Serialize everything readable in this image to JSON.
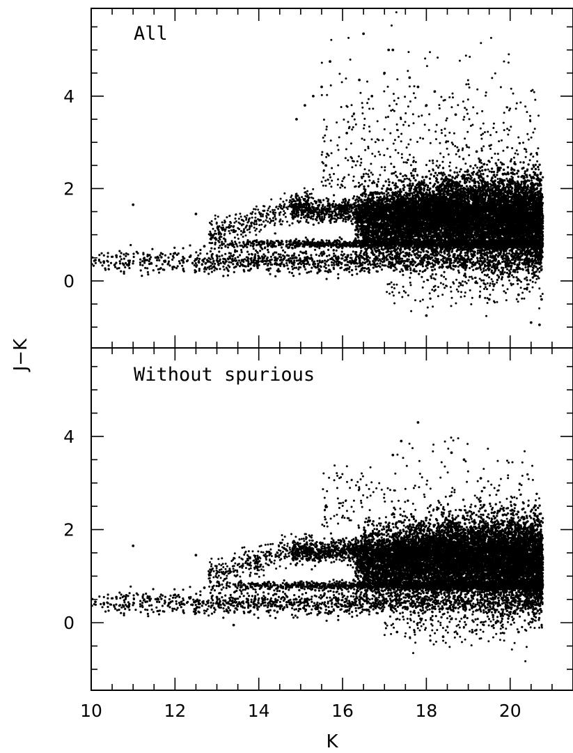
{
  "chart_data": [
    {
      "type": "scatter",
      "panel_label": "All",
      "xlabel": "K",
      "ylabel": "J−K",
      "xlim": [
        10,
        21.5
      ],
      "ylim": [
        -1.45,
        5.9
      ],
      "xticks": [
        10,
        12,
        14,
        16,
        18,
        20
      ],
      "yticks": [
        0,
        2,
        4
      ],
      "grid": false,
      "legend": "none",
      "color": "#000000",
      "points": [
        [
          10.1,
          0.45
        ],
        [
          10.3,
          0.42
        ],
        [
          10.6,
          0.55
        ],
        [
          10.9,
          0.35
        ],
        [
          11.0,
          1.65
        ],
        [
          11.3,
          0.45
        ],
        [
          11.6,
          0.5
        ],
        [
          12.0,
          0.6
        ],
        [
          12.2,
          0.4
        ],
        [
          12.5,
          1.45
        ],
        [
          12.7,
          0.75
        ],
        [
          13.0,
          0.55
        ],
        [
          13.4,
          1.1
        ],
        [
          13.6,
          0.45
        ],
        [
          14.0,
          0.8
        ],
        [
          14.3,
          1.3
        ],
        [
          14.6,
          1.6
        ],
        [
          14.9,
          3.5
        ],
        [
          15.1,
          3.8
        ],
        [
          15.3,
          4.0
        ],
        [
          15.5,
          4.2
        ],
        [
          15.6,
          2.5
        ],
        [
          15.7,
          4.75
        ],
        [
          16.1,
          3.2
        ],
        [
          16.4,
          4.35
        ],
        [
          16.5,
          5.35
        ],
        [
          16.7,
          4.0
        ],
        [
          17.0,
          4.5
        ],
        [
          17.1,
          5.0
        ],
        [
          17.2,
          5.0
        ],
        [
          17.6,
          4.4
        ],
        [
          17.8,
          4.2
        ],
        [
          18.0,
          3.8
        ],
        [
          18.2,
          4.1
        ],
        [
          18.3,
          1.3
        ],
        [
          18.7,
          3.6
        ],
        [
          19.2,
          2.8
        ],
        [
          19.6,
          0.5
        ],
        [
          20.2,
          -0.3
        ],
        [
          20.5,
          -0.9
        ],
        [
          20.7,
          -0.95
        ],
        [
          20.75,
          -0.4
        ],
        [
          17.5,
          0.3
        ],
        [
          18.0,
          -0.75
        ],
        [
          19.5,
          -0.4
        ],
        [
          16.0,
          1.55
        ],
        [
          17.0,
          1.6
        ],
        [
          19.0,
          1.4
        ]
      ]
    },
    {
      "type": "scatter",
      "panel_label": "Without spurious",
      "xlabel": "K",
      "ylabel": "J−K",
      "xlim": [
        10,
        21.5
      ],
      "ylim": [
        -1.45,
        5.9
      ],
      "xticks": [
        10,
        12,
        14,
        16,
        18,
        20
      ],
      "yticks": [
        0,
        2,
        4
      ],
      "grid": false,
      "legend": "none",
      "color": "#000000",
      "points": [
        [
          10.1,
          0.45
        ],
        [
          10.3,
          0.42
        ],
        [
          10.6,
          0.55
        ],
        [
          10.9,
          0.35
        ],
        [
          11.0,
          1.65
        ],
        [
          11.3,
          0.45
        ],
        [
          11.6,
          0.5
        ],
        [
          12.0,
          0.6
        ],
        [
          12.2,
          0.4
        ],
        [
          12.5,
          1.45
        ],
        [
          12.7,
          0.75
        ],
        [
          13.0,
          0.55
        ],
        [
          13.4,
          1.1
        ],
        [
          13.4,
          -0.05
        ],
        [
          14.0,
          0.8
        ],
        [
          14.3,
          1.3
        ],
        [
          14.6,
          1.6
        ],
        [
          15.6,
          2.5
        ],
        [
          17.2,
          3.6
        ],
        [
          17.4,
          3.9
        ],
        [
          17.8,
          4.3
        ],
        [
          18.6,
          3.65
        ],
        [
          18.9,
          3.5
        ],
        [
          19.3,
          3.1
        ],
        [
          19.6,
          0.5
        ],
        [
          20.2,
          -0.2
        ],
        [
          20.6,
          0.3
        ],
        [
          17.3,
          -0.2
        ],
        [
          18.4,
          -0.3
        ],
        [
          19.1,
          -0.2
        ],
        [
          16.0,
          1.55
        ],
        [
          17.0,
          1.6
        ],
        [
          19.0,
          1.4
        ]
      ]
    }
  ]
}
